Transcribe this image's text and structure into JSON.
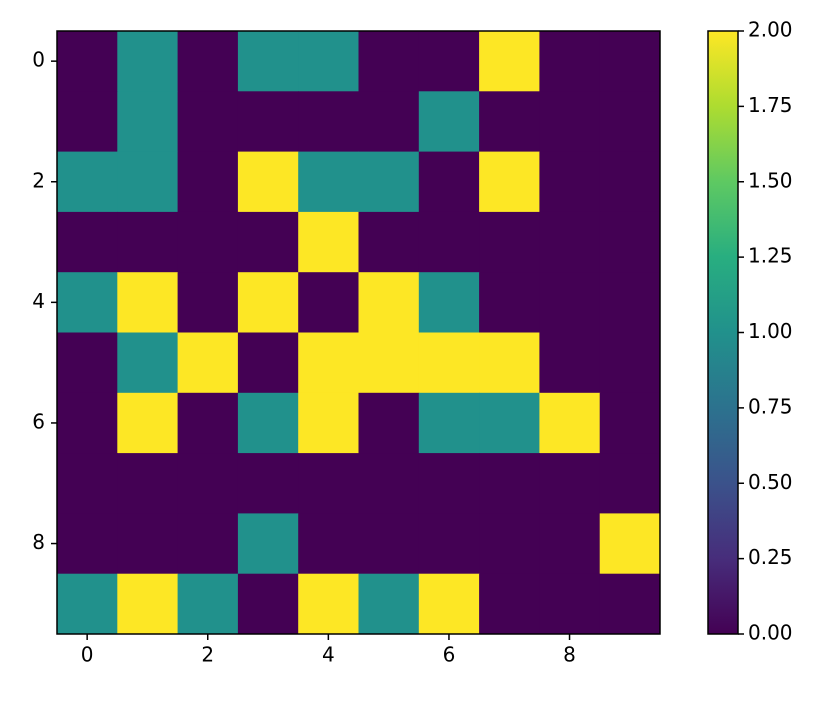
{
  "chart_data": {
    "type": "heatmap",
    "colormap": "viridis",
    "z": [
      [
        0,
        1,
        0,
        1,
        1,
        0,
        0,
        2,
        0,
        0
      ],
      [
        0,
        1,
        0,
        0,
        0,
        0,
        1,
        0,
        0,
        0
      ],
      [
        1,
        1,
        0,
        2,
        1,
        1,
        0,
        2,
        0,
        0
      ],
      [
        0,
        0,
        0,
        0,
        2,
        0,
        0,
        0,
        0,
        0
      ],
      [
        1,
        2,
        0,
        2,
        0,
        2,
        1,
        0,
        0,
        0
      ],
      [
        0,
        1,
        2,
        0,
        2,
        2,
        2,
        2,
        0,
        0
      ],
      [
        0,
        2,
        0,
        1,
        2,
        0,
        1,
        1,
        2,
        0
      ],
      [
        0,
        0,
        0,
        0,
        0,
        0,
        0,
        0,
        0,
        0
      ],
      [
        0,
        0,
        0,
        1,
        0,
        0,
        0,
        0,
        0,
        2
      ],
      [
        1,
        2,
        1,
        0,
        2,
        1,
        2,
        0,
        0,
        0
      ]
    ],
    "xlim": [
      -0.5,
      9.5
    ],
    "ylim": [
      9.5,
      -0.5
    ],
    "xticks": [
      0,
      2,
      4,
      6,
      8
    ],
    "yticks": [
      0,
      2,
      4,
      6,
      8
    ],
    "clim": [
      0,
      2
    ],
    "cticks": [
      {
        "value": 0,
        "label": "0.00"
      },
      {
        "value": 0.25,
        "label": "0.25"
      },
      {
        "value": 0.5,
        "label": "0.50"
      },
      {
        "value": 0.75,
        "label": "0.75"
      },
      {
        "value": 1,
        "label": "1.00"
      },
      {
        "value": 1.25,
        "label": "1.25"
      },
      {
        "value": 1.5,
        "label": "1.50"
      },
      {
        "value": 1.75,
        "label": "1.75"
      },
      {
        "value": 2,
        "label": "2.00"
      }
    ]
  }
}
